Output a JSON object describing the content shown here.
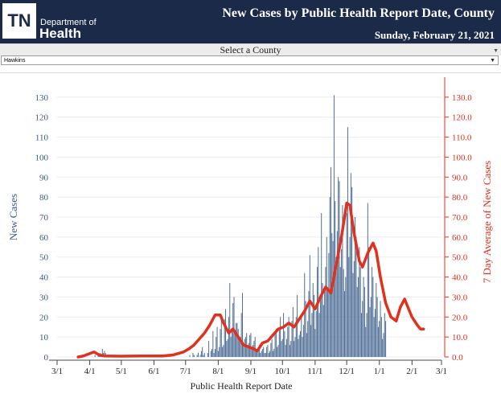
{
  "header": {
    "logo_text": "TN",
    "dept_line1": "Department of",
    "dept_line2": "Health",
    "title": "New Cases by Public Health Report Date, County",
    "date": "Sunday, February 21, 2021"
  },
  "county_select": {
    "label": "Select a County",
    "value": "Hawkins"
  },
  "colors": {
    "header_bg": "#1b2a48",
    "bar": "#4e6d96",
    "line": "#e0301e",
    "left_axis": "#3a5a8c",
    "right_axis": "#e0301e"
  },
  "chart_data": {
    "type": "bar",
    "title": "New Cases by Public Health Report Date, County",
    "xlabel": "Public Health Report Date",
    "ylabel": "New Cases",
    "y2label": "7 Day Average of New Cases",
    "ylim": [
      0,
      140
    ],
    "y2lim": [
      0,
      140
    ],
    "y_ticks": [
      "0",
      "10",
      "20",
      "30",
      "40",
      "50",
      "60",
      "70",
      "80",
      "90",
      "100",
      "110",
      "120",
      "130"
    ],
    "y2_ticks": [
      "0.0",
      "10.0",
      "20.0",
      "30.0",
      "40.0",
      "50.0",
      "60.0",
      "70.0",
      "80.0",
      "90.0",
      "100.0",
      "110.0",
      "120.0",
      "130.0"
    ],
    "x_ticks": [
      "3/1",
      "4/1",
      "5/1",
      "6/1",
      "7/1",
      "8/1",
      "9/1",
      "10/1",
      "11/1",
      "12/1",
      "1/1",
      "2/1",
      "3/1"
    ],
    "x_start_label": "3/1",
    "total_days": 365,
    "bar_series": {
      "name": "New Cases",
      "start_day": 20,
      "values": [
        0,
        0,
        0,
        0,
        0,
        0,
        0,
        0,
        0,
        0,
        0,
        0,
        0,
        0,
        0,
        0,
        1,
        0,
        0,
        1,
        1,
        2,
        1,
        4,
        2,
        3,
        2,
        1,
        1,
        0,
        1,
        0,
        1,
        0,
        0,
        0,
        0,
        0,
        0,
        0,
        0,
        0,
        0,
        0,
        0,
        1,
        0,
        0,
        1,
        0,
        0,
        0,
        0,
        0,
        0,
        0,
        0,
        0,
        0,
        0,
        1,
        0,
        0,
        0,
        0,
        0,
        0,
        0,
        0,
        0,
        0,
        0,
        0,
        0,
        0,
        0,
        0,
        0,
        0,
        0,
        0,
        0,
        0,
        0,
        0,
        0,
        0,
        1,
        0,
        0,
        0,
        0,
        0,
        0,
        0,
        0,
        0,
        0,
        0,
        0,
        0,
        0,
        0,
        0,
        0,
        0,
        1,
        0,
        0,
        2,
        1,
        0,
        0,
        1,
        2,
        0,
        1,
        3,
        5,
        1,
        2,
        0,
        0,
        2,
        8,
        0,
        3,
        4,
        13,
        2,
        4,
        10,
        15,
        3,
        5,
        14,
        18,
        5,
        6,
        19,
        24,
        8,
        9,
        20,
        37,
        10,
        14,
        27,
        30,
        12,
        17,
        17,
        14,
        8,
        10,
        22,
        32,
        6,
        9,
        10,
        12,
        6,
        7,
        11,
        12,
        4,
        6,
        8,
        10,
        3,
        4,
        5,
        6,
        2,
        3,
        4,
        5,
        2,
        2,
        5,
        6,
        2,
        3,
        7,
        9,
        3,
        4,
        12,
        14,
        5,
        6,
        14,
        20,
        8,
        9,
        22,
        13,
        6,
        9,
        15,
        20,
        6,
        8,
        18,
        25,
        8,
        10,
        20,
        31,
        9,
        11,
        13,
        20,
        10,
        16,
        42,
        28,
        12,
        18,
        33,
        51,
        16,
        22,
        37,
        31,
        14,
        23,
        45,
        55,
        22,
        30,
        72,
        37,
        26,
        34,
        45,
        60,
        35,
        52,
        80,
        95,
        62,
        58,
        131,
        78,
        50,
        63,
        90,
        88,
        45,
        54,
        76,
        44,
        33,
        40,
        72,
        115,
        50,
        60,
        92,
        85,
        42,
        48,
        70,
        60,
        35,
        40,
        55,
        45,
        22,
        28,
        40,
        35,
        15,
        22,
        77,
        55,
        25,
        30,
        45,
        40,
        20,
        24,
        37,
        30,
        15,
        18,
        28,
        20,
        9,
        12,
        22,
        18
      ]
    },
    "line_series": {
      "name": "7 Day Average of New Cases",
      "points": [
        [
          20,
          0.0
        ],
        [
          25,
          0.5
        ],
        [
          30,
          1.5
        ],
        [
          35,
          2.5
        ],
        [
          40,
          1.0
        ],
        [
          45,
          0.5
        ],
        [
          60,
          0.4
        ],
        [
          80,
          0.5
        ],
        [
          100,
          0.5
        ],
        [
          110,
          1.0
        ],
        [
          120,
          2.5
        ],
        [
          125,
          4.0
        ],
        [
          130,
          6.0
        ],
        [
          135,
          9.0
        ],
        [
          140,
          12.0
        ],
        [
          145,
          16.0
        ],
        [
          150,
          21.0
        ],
        [
          155,
          21.0
        ],
        [
          158,
          17.0
        ],
        [
          163,
          12.0
        ],
        [
          167,
          14.0
        ],
        [
          172,
          10.0
        ],
        [
          177,
          6.0
        ],
        [
          182,
          5.0
        ],
        [
          187,
          4.0
        ],
        [
          190,
          3.0
        ],
        [
          195,
          7.0
        ],
        [
          200,
          8.0
        ],
        [
          205,
          11.0
        ],
        [
          210,
          14.0
        ],
        [
          215,
          15.0
        ],
        [
          220,
          17.0
        ],
        [
          225,
          15.0
        ],
        [
          230,
          19.0
        ],
        [
          235,
          23.0
        ],
        [
          240,
          28.0
        ],
        [
          245,
          24.0
        ],
        [
          250,
          30.0
        ],
        [
          255,
          35.0
        ],
        [
          260,
          32.0
        ],
        [
          265,
          46.0
        ],
        [
          270,
          60.0
        ],
        [
          275,
          77.0
        ],
        [
          278,
          76.0
        ],
        [
          282,
          62.0
        ],
        [
          287,
          48.0
        ],
        [
          290,
          45.0
        ],
        [
          295,
          52.0
        ],
        [
          300,
          57.0
        ],
        [
          303,
          53.0
        ],
        [
          307,
          40.0
        ],
        [
          312,
          27.0
        ],
        [
          317,
          20.0
        ],
        [
          322,
          18.0
        ],
        [
          326,
          25.0
        ],
        [
          330,
          29.0
        ],
        [
          333,
          25.0
        ],
        [
          337,
          20.0
        ],
        [
          342,
          16.0
        ],
        [
          345,
          14.0
        ],
        [
          348,
          14.0
        ]
      ]
    }
  }
}
